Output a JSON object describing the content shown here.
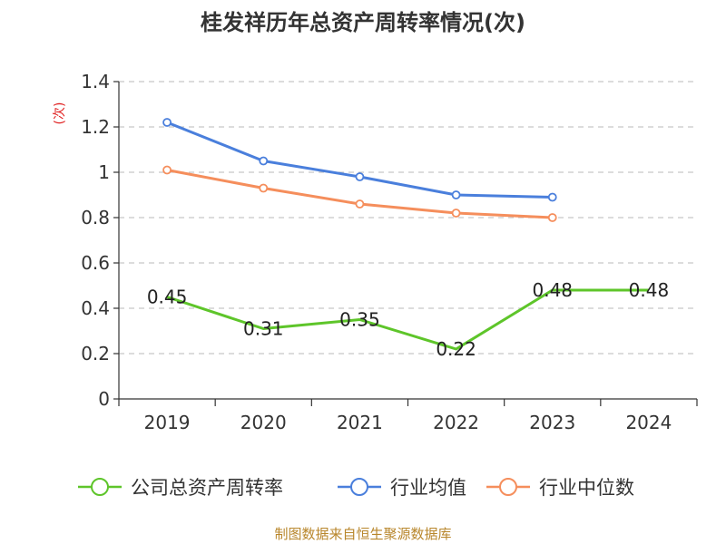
{
  "chart_data": {
    "type": "line",
    "title": "桂发祥历年总资产周转率情况(次)",
    "ylabel": "(次)",
    "xlabel": "",
    "categories": [
      "2019",
      "2020",
      "2021",
      "2022",
      "2023",
      "2024"
    ],
    "y_ticks": [
      "0",
      "0.2",
      "0.4",
      "0.6",
      "0.8",
      "1",
      "1.2",
      "1.4"
    ],
    "ylim": [
      0,
      1.4
    ],
    "grid": true,
    "legend_position": "bottom",
    "series": [
      {
        "name": "公司总资产周转率",
        "color": "#5ec52a",
        "values": [
          0.45,
          0.31,
          0.35,
          0.22,
          0.48,
          0.48
        ],
        "labels": [
          "0.45",
          "0.31",
          "0.35",
          "0.22",
          "0.48",
          "0.48"
        ],
        "show_markers": false
      },
      {
        "name": "行业均值",
        "color": "#4a7fdc",
        "values": [
          1.22,
          1.05,
          0.98,
          0.9,
          0.89,
          null
        ],
        "show_markers": true
      },
      {
        "name": "行业中位数",
        "color": "#f58e5c",
        "values": [
          1.01,
          0.93,
          0.86,
          0.82,
          0.8,
          null
        ],
        "show_markers": true
      }
    ],
    "source": "制图数据来自恒生聚源数据库"
  }
}
